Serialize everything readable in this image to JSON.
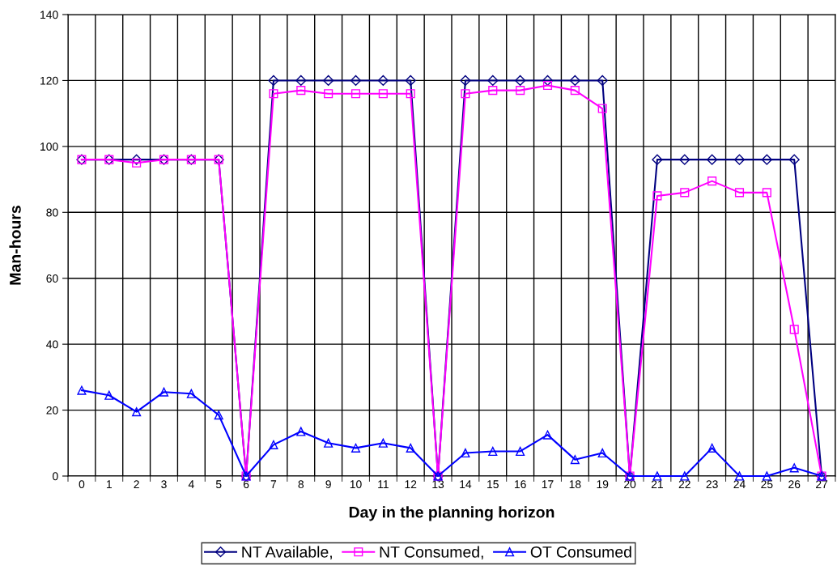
{
  "chart_data": {
    "type": "line",
    "xlabel": "Day in the planning horizon",
    "ylabel": "Man-hours",
    "categories": [
      "0",
      "1",
      "2",
      "3",
      "4",
      "5",
      "6",
      "7",
      "8",
      "9",
      "10",
      "11",
      "12",
      "13",
      "14",
      "15",
      "16",
      "17",
      "18",
      "19",
      "20",
      "21",
      "22",
      "23",
      "24",
      "25",
      "26",
      "27"
    ],
    "ylim": [
      0,
      140
    ],
    "yticks": [
      0,
      20,
      40,
      60,
      80,
      100,
      120,
      140
    ],
    "grid": true,
    "legend": "bottom",
    "series": [
      {
        "name": "NT Available,",
        "color": "#000080",
        "marker": "diamond",
        "values": [
          96,
          96,
          96,
          96,
          96,
          96,
          0,
          120,
          120,
          120,
          120,
          120,
          120,
          0,
          120,
          120,
          120,
          120,
          120,
          120,
          0,
          96,
          96,
          96,
          96,
          96,
          96,
          0
        ]
      },
      {
        "name": "NT Consumed,",
        "color": "#ff00ff",
        "marker": "square",
        "values": [
          96,
          96,
          95,
          96,
          96,
          96,
          0,
          116,
          117,
          116,
          116,
          116,
          116,
          0,
          116,
          117,
          117,
          118.5,
          117,
          111.5,
          0,
          85,
          86,
          89.5,
          86,
          86,
          44.5,
          0
        ]
      },
      {
        "name": "OT Consumed",
        "color": "#0000ff",
        "marker": "triangle",
        "values": [
          26,
          24.5,
          19.5,
          25.5,
          25,
          18.5,
          0,
          9.5,
          13.5,
          10,
          8.5,
          10,
          8.5,
          0,
          7,
          7.5,
          7.5,
          12.5,
          5,
          7,
          0,
          0,
          0,
          8.5,
          0,
          0,
          2.5,
          0
        ]
      }
    ]
  }
}
